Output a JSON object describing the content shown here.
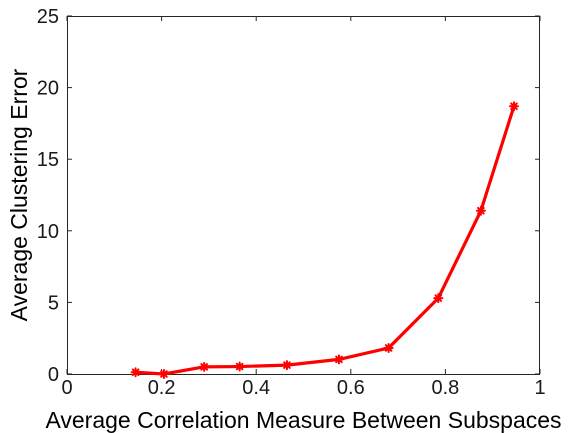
{
  "chart_data": {
    "type": "line",
    "title": "",
    "xlabel": "Average Correlation Measure Between Subspaces",
    "ylabel": "Average Clustering Error",
    "xlim": [
      0,
      1
    ],
    "ylim": [
      0,
      25
    ],
    "xticks": [
      0,
      0.2,
      0.4,
      0.6,
      0.8,
      1
    ],
    "xtick_labels": [
      "0",
      "0.2",
      "0.4",
      "0.6",
      "0.8",
      "1"
    ],
    "yticks": [
      0,
      5,
      10,
      15,
      20,
      25
    ],
    "ytick_labels": [
      "0",
      "5",
      "10",
      "15",
      "20",
      "25"
    ],
    "grid": false,
    "legend": "none",
    "series": [
      {
        "color": "#ff0000",
        "marker": "asterisk",
        "x": [
          0.145,
          0.205,
          0.29,
          0.365,
          0.465,
          0.575,
          0.68,
          0.785,
          0.875,
          0.945
        ],
        "y": [
          0.12,
          0.0,
          0.5,
          0.52,
          0.62,
          1.02,
          1.82,
          5.3,
          11.4,
          18.7
        ]
      }
    ]
  }
}
